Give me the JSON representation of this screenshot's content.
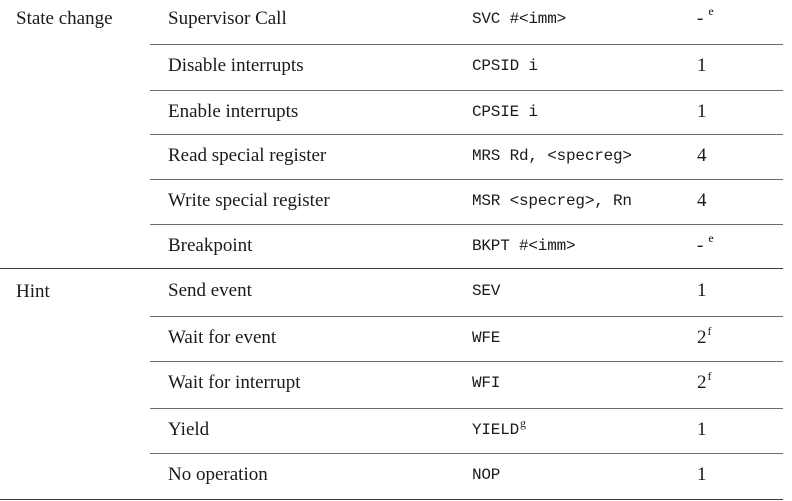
{
  "groups": [
    {
      "label": "State change",
      "rows": [
        {
          "operation": "Supervisor Call",
          "mnemonic": "SVC #<imm>",
          "mnemonic_note": "",
          "cycles": "-",
          "cycles_note": "e"
        },
        {
          "operation": "Disable interrupts",
          "mnemonic": "CPSID i",
          "mnemonic_note": "",
          "cycles": "1",
          "cycles_note": ""
        },
        {
          "operation": "Enable interrupts",
          "mnemonic": "CPSIE i",
          "mnemonic_note": "",
          "cycles": "1",
          "cycles_note": ""
        },
        {
          "operation": "Read special register",
          "mnemonic": "MRS Rd, <specreg>",
          "mnemonic_note": "",
          "cycles": "4",
          "cycles_note": ""
        },
        {
          "operation": "Write special register",
          "mnemonic": "MSR <specreg>, Rn",
          "mnemonic_note": "",
          "cycles": "4",
          "cycles_note": ""
        },
        {
          "operation": "Breakpoint",
          "mnemonic": "BKPT #<imm>",
          "mnemonic_note": "",
          "cycles": "-",
          "cycles_note": "e"
        }
      ]
    },
    {
      "label": "Hint",
      "rows": [
        {
          "operation": "Send event",
          "mnemonic": "SEV",
          "mnemonic_note": "",
          "cycles": "1",
          "cycles_note": ""
        },
        {
          "operation": "Wait for event",
          "mnemonic": "WFE",
          "mnemonic_note": "",
          "cycles": "2",
          "cycles_note": "f"
        },
        {
          "operation": "Wait for interrupt",
          "mnemonic": "WFI",
          "mnemonic_note": "",
          "cycles": "2",
          "cycles_note": "f"
        },
        {
          "operation": "Yield",
          "mnemonic": "YIELD",
          "mnemonic_note": "g",
          "cycles": "1",
          "cycles_note": ""
        },
        {
          "operation": "No operation",
          "mnemonic": "NOP",
          "mnemonic_note": "",
          "cycles": "1",
          "cycles_note": ""
        }
      ]
    }
  ]
}
